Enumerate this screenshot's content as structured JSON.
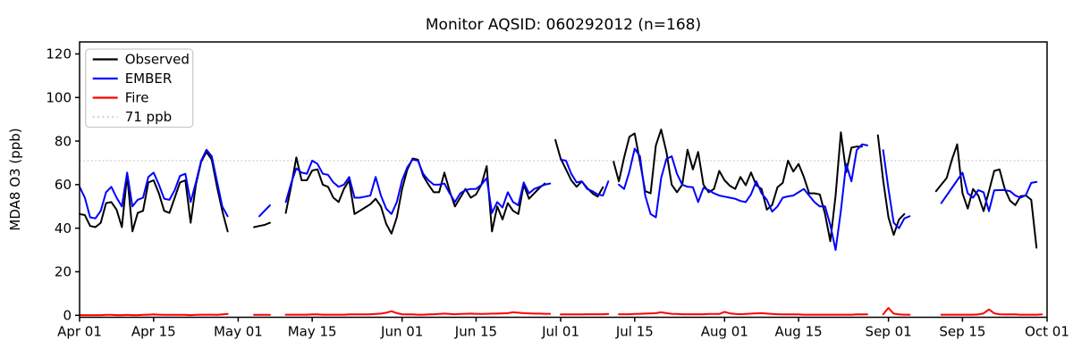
{
  "chart_data": {
    "type": "line",
    "title": "Monitor AQSID: 060292012 (n=168)",
    "ylabel": "MDA8 O3 (ppb)",
    "grid": false,
    "legend_position": "upper left",
    "ylim": [
      -0.9,
      125.5
    ],
    "yticks": [
      0,
      20,
      40,
      60,
      80,
      100,
      120
    ],
    "x_total_days": 183,
    "xtick_days": [
      0,
      14,
      30,
      44,
      61,
      75,
      91,
      105,
      122,
      136,
      153,
      167,
      183
    ],
    "xtick_labels": [
      "Apr 01",
      "Apr 15",
      "May 01",
      "May 15",
      "Jun 01",
      "Jun 15",
      "Jul 01",
      "Jul 15",
      "Aug 01",
      "Aug 15",
      "Sep 01",
      "Sep 15",
      "Oct 01"
    ],
    "threshold": {
      "label": "71 ppb",
      "value": 71,
      "color": "#d3d3d3"
    },
    "series": [
      {
        "name": "Observed",
        "color": "#000000",
        "values": [
          46.5,
          46,
          41,
          40.5,
          42.5,
          51.5,
          52,
          48.5,
          40.5,
          64.5,
          38.5,
          47,
          48,
          61,
          62,
          56,
          48,
          47,
          54,
          61,
          62,
          42.5,
          60,
          70.5,
          75,
          71.5,
          59,
          48,
          38.5,
          null,
          null,
          null,
          null,
          40.5,
          41,
          41.5,
          42.5,
          null,
          null,
          47,
          59,
          72.5,
          62,
          62,
          66.5,
          67,
          60,
          59,
          54,
          52,
          58,
          62,
          46.5,
          48,
          49.5,
          51,
          53.5,
          50,
          42,
          37.5,
          45,
          58,
          67,
          72,
          71.5,
          64,
          60,
          56.5,
          56.5,
          65.5,
          57,
          50,
          54,
          58,
          54,
          55.5,
          60,
          68.5,
          38.5,
          50,
          44,
          51.5,
          48,
          46.5,
          60,
          53.5,
          56,
          58.5,
          60.5,
          null,
          80.5,
          72,
          67,
          62,
          59,
          61.5,
          58.5,
          56,
          54.5,
          58.8,
          null,
          70.5,
          61.5,
          72.5,
          82,
          83.5,
          70.5,
          57,
          56,
          78,
          85.3,
          75,
          60,
          56.5,
          60,
          76,
          67,
          75,
          60,
          56.5,
          58,
          66.3,
          62,
          59.5,
          58,
          63.5,
          59.7,
          65.6,
          59.7,
          58,
          48.5,
          50.6,
          58.8,
          60.8,
          71,
          66,
          69.5,
          63.5,
          56,
          56,
          55.5,
          46.5,
          34,
          55,
          84,
          65.6,
          77,
          77.5,
          77.5,
          null,
          null,
          82.7,
          62,
          45,
          36.9,
          44,
          46.5,
          null,
          null,
          null,
          null,
          null,
          57,
          60,
          63,
          71.5,
          78.5,
          56,
          49,
          58,
          55,
          47.8,
          57,
          66.3,
          67,
          58,
          52.6,
          50.6,
          54.7,
          55,
          53,
          31
        ]
      },
      {
        "name": "EMBER",
        "color": "#0000ff",
        "values": [
          59,
          54,
          45,
          44.5,
          48,
          56.5,
          59,
          54,
          50,
          65.5,
          50,
          53,
          54,
          63.5,
          65.5,
          60,
          53.5,
          53,
          57.5,
          64,
          65,
          52,
          61,
          71,
          76,
          73,
          61.5,
          50,
          45.5,
          null,
          null,
          null,
          null,
          null,
          45.5,
          48,
          50.5,
          null,
          null,
          52,
          60.5,
          67.5,
          65.5,
          65,
          71,
          69.5,
          65,
          64.5,
          61,
          59,
          60,
          63.5,
          54,
          54,
          54.5,
          55,
          63.5,
          55,
          49,
          46.5,
          52,
          62,
          68,
          71.5,
          71,
          65,
          62,
          60,
          60,
          60.5,
          56,
          52,
          56,
          57.5,
          58,
          58,
          60,
          63,
          47,
          52,
          49.5,
          56.5,
          52,
          50.5,
          61,
          56,
          58,
          59,
          60,
          60.5,
          null,
          71.5,
          71,
          65,
          61,
          61.5,
          58,
          57,
          55.5,
          55,
          61.5,
          null,
          60,
          58,
          66,
          76.5,
          73,
          55,
          46.5,
          45,
          63,
          71.8,
          73,
          65,
          60,
          59,
          58.8,
          52,
          58.5,
          57.5,
          56,
          55,
          54.5,
          54,
          53.5,
          52.5,
          52,
          55.5,
          61.5,
          56,
          53,
          47.6,
          50,
          54,
          54.6,
          55,
          56.5,
          58,
          55,
          52,
          50,
          50,
          41.5,
          30,
          48,
          69.5,
          61.5,
          75.8,
          78.5,
          78,
          null,
          null,
          75.8,
          58,
          42.5,
          40,
          44.5,
          45.5,
          null,
          null,
          null,
          null,
          null,
          51.5,
          55,
          58.5,
          62,
          65.5,
          56,
          54,
          57.5,
          56.5,
          47.8,
          57.4,
          57.5,
          57.5,
          57,
          55,
          54,
          55.2,
          60.8,
          61.2,
          null
        ]
      },
      {
        "name": "Fire",
        "color": "#ff0000",
        "values": [
          0.1,
          0.1,
          0.1,
          0.1,
          0.1,
          0.2,
          0.2,
          0.1,
          0.1,
          0.2,
          0.1,
          0.1,
          0.2,
          0.3,
          0.4,
          0.3,
          0.2,
          0.2,
          0.2,
          0.2,
          0.2,
          0.1,
          0.2,
          0.3,
          0.3,
          0.3,
          0.2,
          0.4,
          0.6,
          null,
          null,
          null,
          null,
          0.2,
          0.2,
          0.2,
          0.2,
          null,
          null,
          0.3,
          0.3,
          0.3,
          0.3,
          0.3,
          0.4,
          0.4,
          0.3,
          0.3,
          0.3,
          0.3,
          0.3,
          0.4,
          0.4,
          0.4,
          0.4,
          0.5,
          0.6,
          0.8,
          1.2,
          1.9,
          1.0,
          0.5,
          0.4,
          0.4,
          0.3,
          0.3,
          0.4,
          0.5,
          0.6,
          0.8,
          0.6,
          0.5,
          0.6,
          0.7,
          0.8,
          0.7,
          0.6,
          0.7,
          0.8,
          0.8,
          0.9,
          1.0,
          1.4,
          1.2,
          1.0,
          0.9,
          0.8,
          0.8,
          0.7,
          0.7,
          null,
          0.4,
          0.4,
          0.4,
          0.4,
          0.4,
          0.5,
          0.5,
          0.5,
          0.5,
          0.6,
          null,
          0.5,
          0.5,
          0.5,
          0.6,
          0.7,
          0.8,
          0.9,
          1.0,
          1.4,
          1.0,
          0.7,
          0.6,
          0.5,
          0.5,
          0.5,
          0.5,
          0.5,
          0.6,
          0.6,
          0.6,
          1.6,
          0.9,
          0.6,
          0.5,
          0.6,
          0.8,
          0.9,
          1.0,
          0.8,
          0.6,
          0.5,
          0.4,
          0.4,
          0.4,
          0.4,
          0.3,
          0.3,
          0.3,
          0.3,
          0.3,
          0.3,
          0.3,
          0.3,
          0.3,
          0.3,
          0.4,
          0.4,
          0.4,
          null,
          null,
          0.5,
          3.4,
          0.8,
          0.4,
          0.3,
          0.3,
          null,
          null,
          null,
          null,
          null,
          0.3,
          0.3,
          0.3,
          0.3,
          0.3,
          0.3,
          0.3,
          0.4,
          0.9,
          2.7,
          0.9,
          0.5,
          0.4,
          0.4,
          0.4,
          0.3,
          0.3,
          0.3,
          0.3,
          0.4
        ]
      }
    ]
  }
}
